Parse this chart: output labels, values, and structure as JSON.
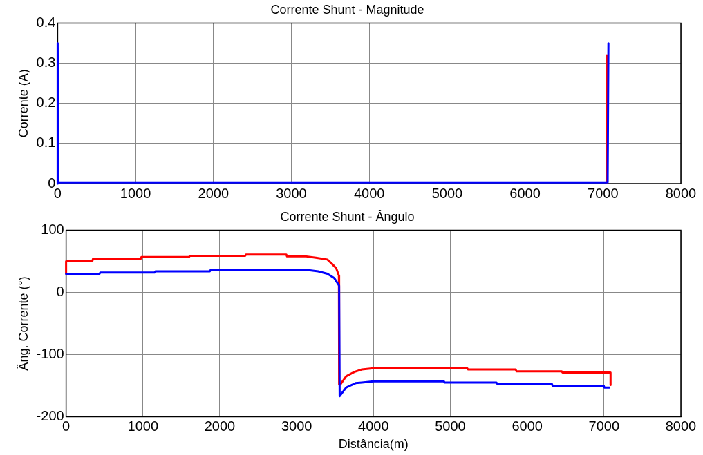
{
  "chart_data": [
    {
      "type": "line",
      "title": "Corrente Shunt - Magnitude",
      "ylabel": "Corrente (A)",
      "xlim": [
        0,
        8000
      ],
      "xticks": [
        0,
        1000,
        2000,
        3000,
        4000,
        5000,
        6000,
        7000,
        8000
      ],
      "ylim": [
        0,
        0.4
      ],
      "yticks": [
        0,
        0.1,
        0.2,
        0.3,
        0.4
      ],
      "grid": true,
      "legend": false,
      "series": [
        {
          "color": "#ff0000",
          "x": [
            7050,
            7050
          ],
          "values": [
            0.003,
            0.32
          ]
        },
        {
          "color": "#0000ff",
          "x": [
            0,
            0,
            10,
            7060,
            7070
          ],
          "values": [
            0,
            0.35,
            0.003,
            0.003,
            0.35
          ]
        }
      ]
    },
    {
      "type": "line",
      "title": "Corrente Shunt - Ângulo",
      "xlabel": "Distância(m)",
      "ylabel": "Âng. Corrente (°)",
      "xlim": [
        0,
        8000
      ],
      "xticks": [
        0,
        1000,
        2000,
        3000,
        4000,
        5000,
        6000,
        7000,
        8000
      ],
      "ylim": [
        -200,
        100
      ],
      "yticks": [
        -200,
        -100,
        0,
        100
      ],
      "grid": true,
      "legend": false,
      "series": [
        {
          "color": "#ff0000",
          "x": [
            0,
            0,
            340,
            350,
            970,
            980,
            1600,
            1610,
            2330,
            2340,
            2865,
            2875,
            3125,
            3250,
            3400,
            3460,
            3515,
            3550,
            3553,
            3570,
            3645,
            3750,
            3850,
            4000,
            5220,
            5230,
            5850,
            5860,
            6450,
            6460,
            7085,
            7085
          ],
          "values": [
            30,
            50,
            50,
            54,
            54,
            57,
            57,
            59,
            59,
            61,
            61,
            58,
            58,
            56,
            53,
            46,
            39,
            27,
            -148,
            -148,
            -135,
            -128,
            -124,
            -122,
            -122,
            -124,
            -124,
            -127,
            -127,
            -129,
            -129,
            -149
          ]
        },
        {
          "color": "#0000ff",
          "x": [
            0,
            435,
            445,
            1153,
            1163,
            1870,
            1880,
            3155,
            3280,
            3400,
            3490,
            3553,
            3560,
            3645,
            3767,
            3850,
            4000,
            4915,
            4925,
            5600,
            5610,
            6320,
            6330,
            6995,
            7005,
            7070
          ],
          "values": [
            30,
            30,
            32,
            32,
            34,
            34,
            36,
            36,
            34,
            30,
            23,
            11,
            -167,
            -153,
            -146,
            -145,
            -143,
            -143,
            -145,
            -145,
            -147,
            -147,
            -150,
            -150,
            -153,
            -153
          ]
        }
      ]
    }
  ]
}
